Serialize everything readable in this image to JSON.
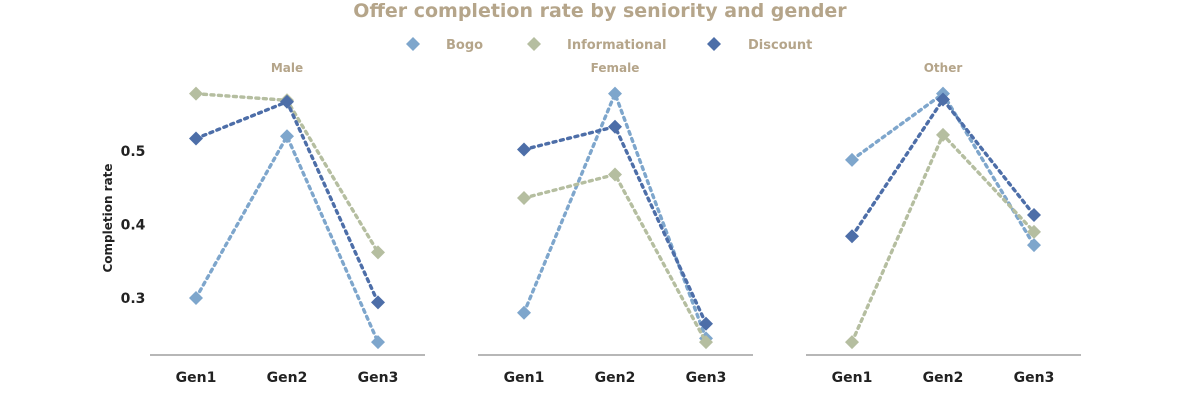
{
  "chart_data": {
    "type": "line",
    "title": "Offer completion rate by seniority and gender",
    "ylabel": "Completion rate",
    "ylim": [
      0.22,
      0.6
    ],
    "yticks": [
      0.3,
      0.4,
      0.5
    ],
    "categories": [
      "Gen1",
      "Gen2",
      "Gen3"
    ],
    "legend_position": "top-center",
    "grid": false,
    "colors": {
      "Bogo": "#7ea6cc",
      "Informational": "#b5bea0",
      "Discount": "#4d6ea8"
    },
    "panels": [
      {
        "title": "Male",
        "series": [
          {
            "name": "Bogo",
            "values": [
              0.3,
              0.52,
              0.24
            ]
          },
          {
            "name": "Informational",
            "values": [
              0.578,
              0.569,
              0.362
            ]
          },
          {
            "name": "Discount",
            "values": [
              0.517,
              0.567,
              0.294
            ]
          }
        ]
      },
      {
        "title": "Female",
        "series": [
          {
            "name": "Bogo",
            "values": [
              0.28,
              0.578,
              0.245
            ]
          },
          {
            "name": "Informational",
            "values": [
              0.436,
              0.468,
              0.24
            ]
          },
          {
            "name": "Discount",
            "values": [
              0.502,
              0.533,
              0.265
            ]
          }
        ]
      },
      {
        "title": "Other",
        "series": [
          {
            "name": "Bogo",
            "values": [
              0.488,
              0.578,
              0.372
            ]
          },
          {
            "name": "Informational",
            "values": [
              0.24,
              0.522,
              0.39
            ]
          },
          {
            "name": "Discount",
            "values": [
              0.384,
              0.57,
              0.413
            ]
          }
        ]
      }
    ]
  }
}
